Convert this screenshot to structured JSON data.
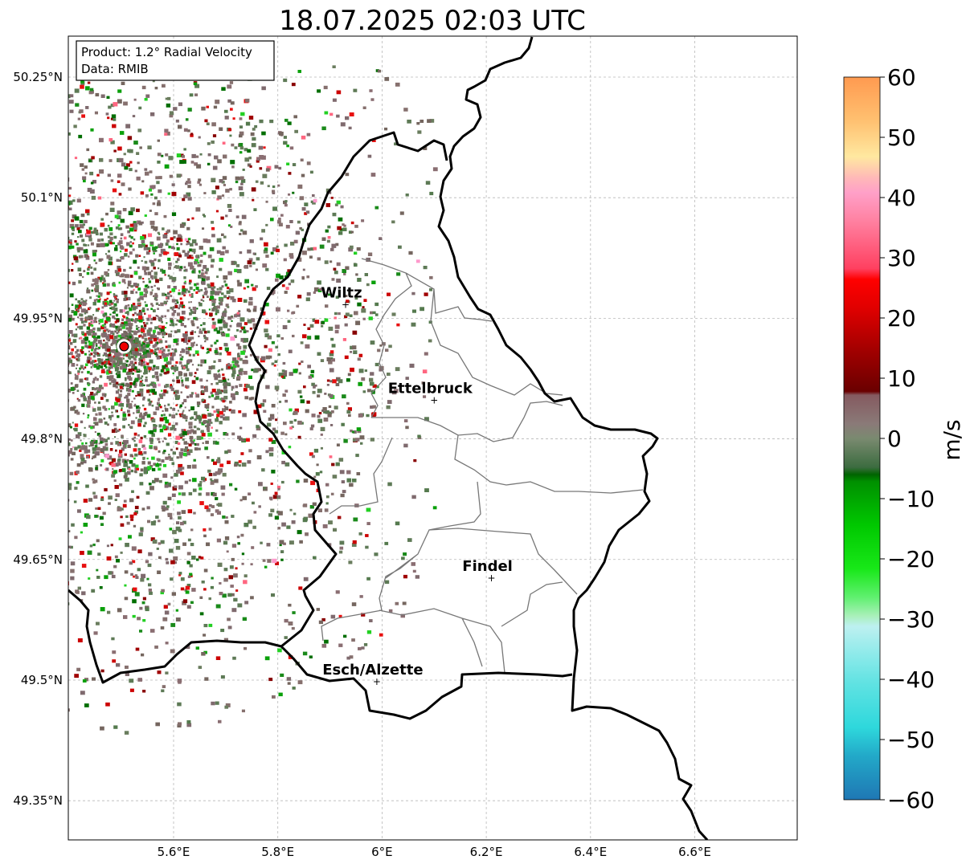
{
  "title": "18.07.2025 02:03 UTC",
  "info_box": {
    "line1": "Product: 1.2° Radial Velocity",
    "line2": "Data: RMIB"
  },
  "axes": {
    "x_ticks": [
      "5.6°E",
      "5.8°E",
      "6°E",
      "6.2°E",
      "6.4°E",
      "6.6°E"
    ],
    "y_ticks": [
      "50.25°N",
      "50.1°N",
      "49.95°N",
      "49.8°N",
      "49.65°N",
      "49.5°N",
      "49.35°N"
    ],
    "lon_range": [
      5.4,
      6.8
    ],
    "lat_range": [
      49.3,
      50.3
    ]
  },
  "colorbar": {
    "label": "m/s",
    "ticks": [
      "60",
      "50",
      "40",
      "30",
      "20",
      "10",
      "0",
      "−10",
      "−20",
      "−30",
      "−40",
      "−50",
      "−60"
    ],
    "range": [
      -60,
      60
    ]
  },
  "cities": [
    {
      "name": "Wiltz",
      "lon": 5.93,
      "lat": 49.967
    },
    {
      "name": "Ettelbruck",
      "lon": 6.1,
      "lat": 49.848
    },
    {
      "name": "Findel",
      "lon": 6.21,
      "lat": 49.627
    },
    {
      "name": "Esch/Alzette",
      "lon": 5.99,
      "lat": 49.498
    }
  ],
  "radar_site": {
    "lon": 5.505,
    "lat": 49.915
  }
}
